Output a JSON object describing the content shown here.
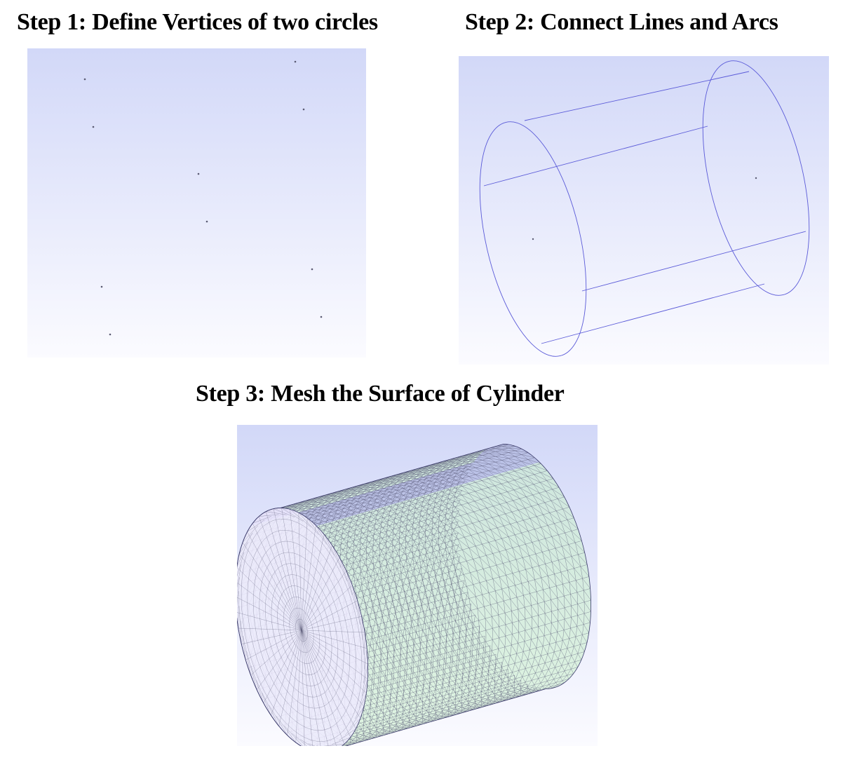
{
  "steps": [
    {
      "title": "Step 1: Define Vertices of two circles"
    },
    {
      "title": "Step 2: Connect Lines and Arcs"
    },
    {
      "title": "Step 3: Mesh the Surface of Cylinder"
    }
  ],
  "colors": {
    "viewport_top": "#d2d8f8",
    "viewport_bottom": "#fbfbff",
    "vertex": "#5a5a72",
    "edge": "#5a5ad8",
    "mesh_line": "#5a5a78",
    "mesh_blue_fill": "#a89df0",
    "mesh_green_fill": "#c8eec8"
  }
}
